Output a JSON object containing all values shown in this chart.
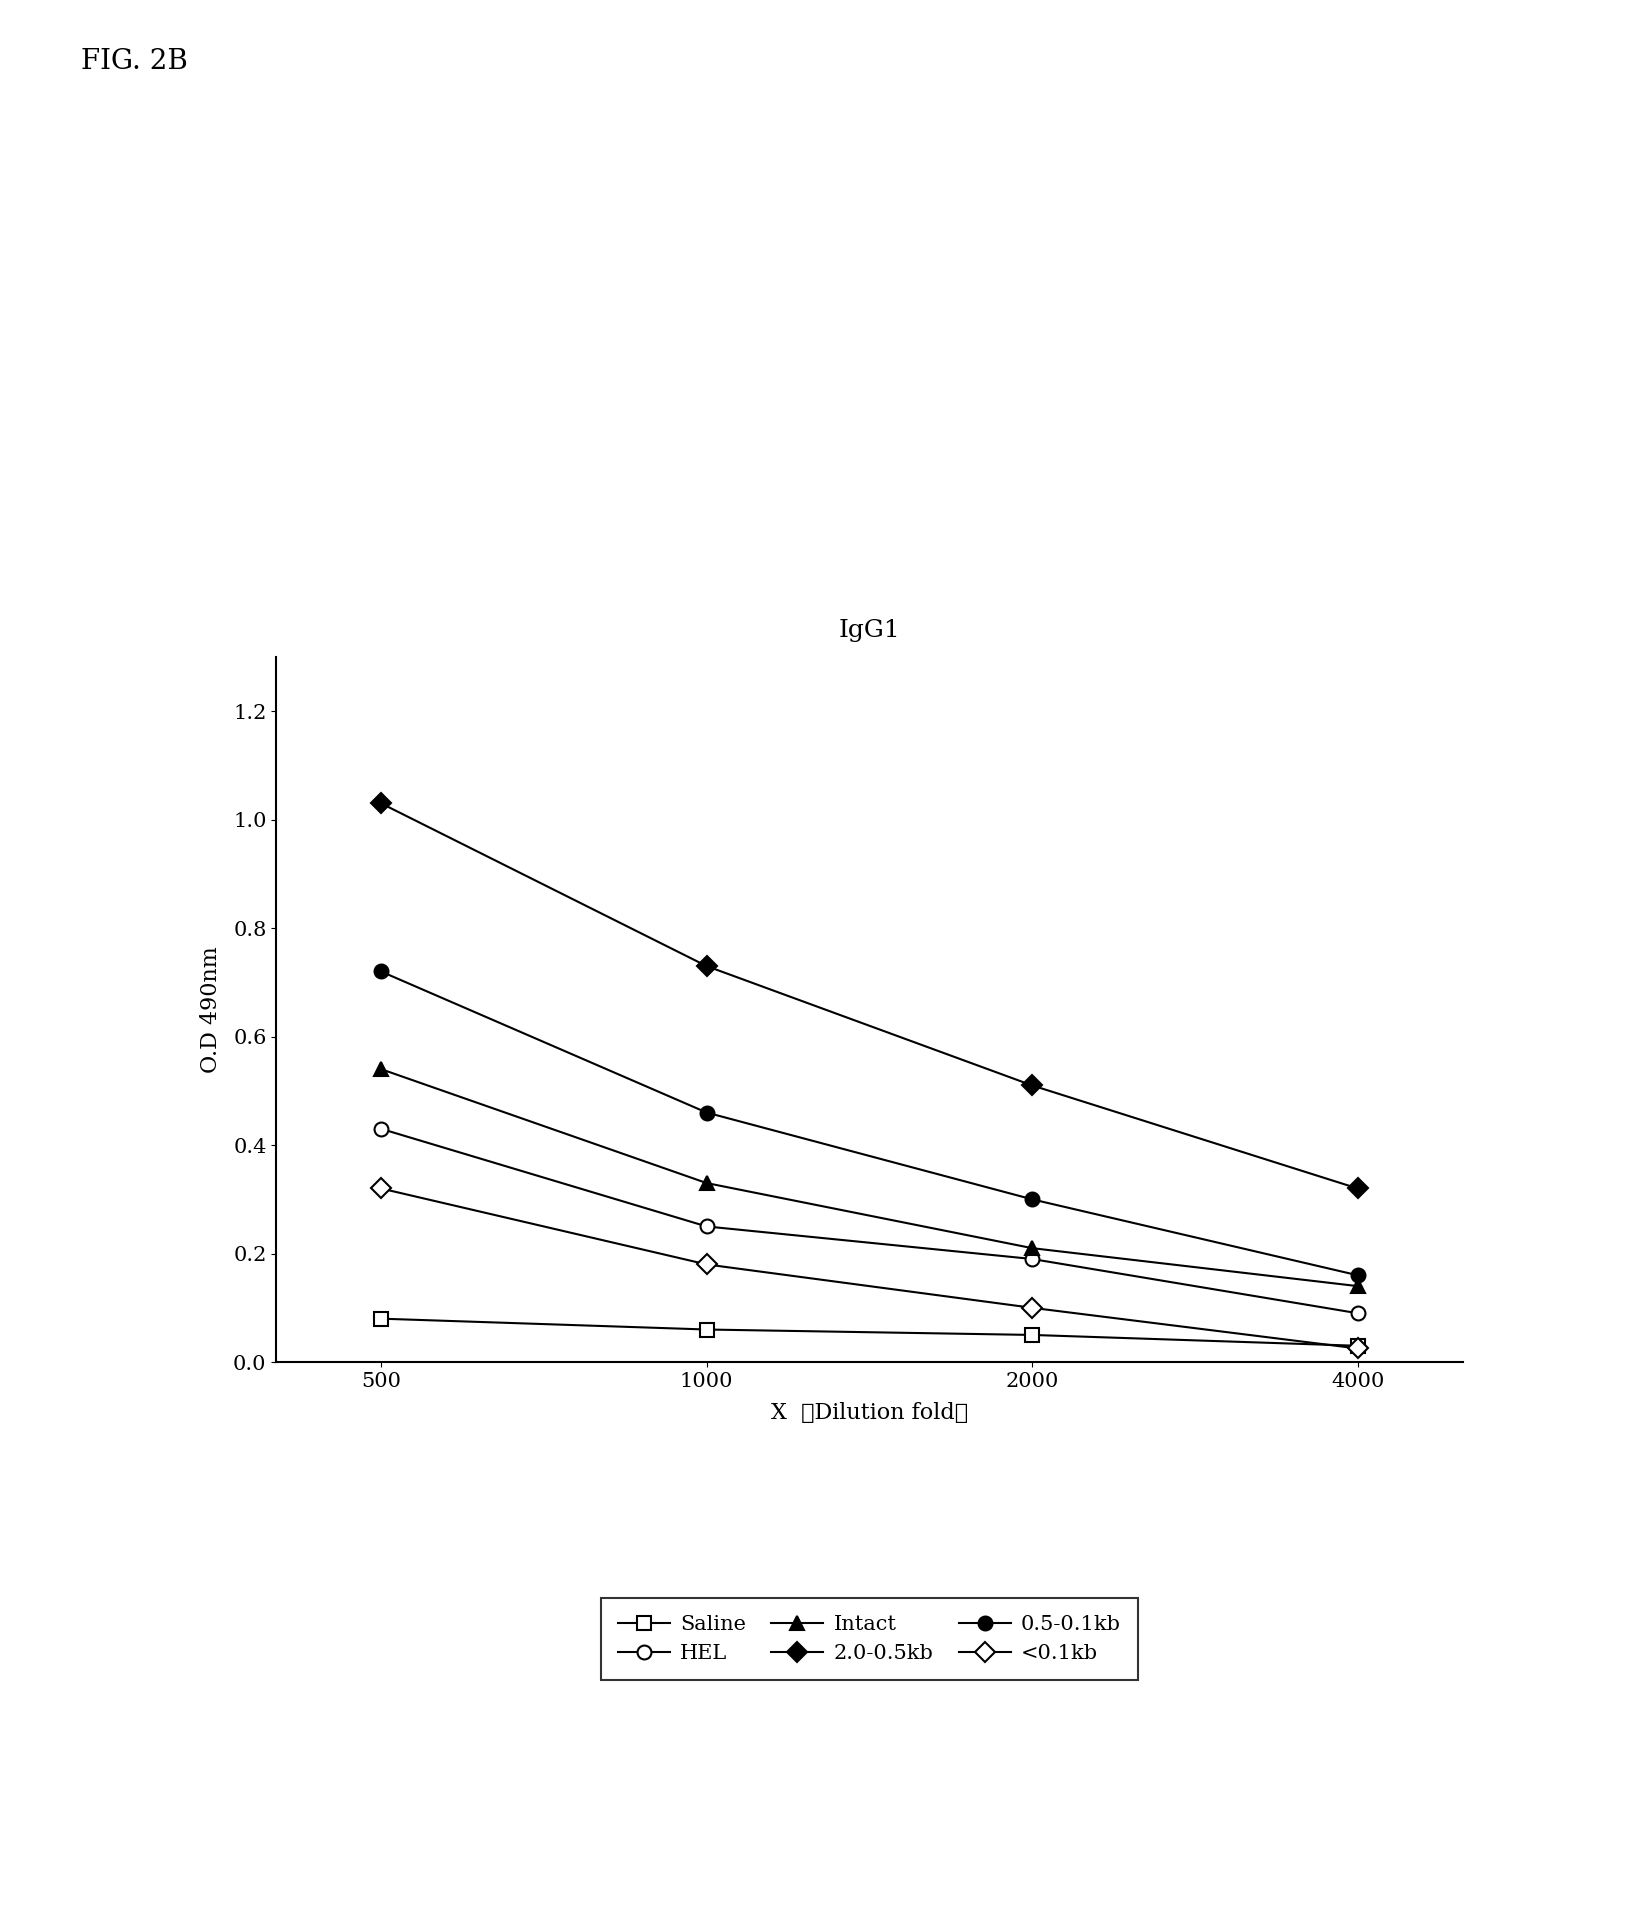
{
  "title": "IgG1",
  "xlabel": "X  ❘Dilution fold❘",
  "ylabel": "O.D 490nm",
  "x_values": [
    500,
    1000,
    2000,
    4000
  ],
  "series": [
    {
      "label": "Saline",
      "marker": "s",
      "fillstyle": "none",
      "color": "black",
      "linewidth": 1.5,
      "markersize": 10,
      "y": [
        0.08,
        0.06,
        0.05,
        0.03
      ]
    },
    {
      "label": "HEL",
      "marker": "o",
      "fillstyle": "none",
      "color": "black",
      "linewidth": 1.5,
      "markersize": 10,
      "y": [
        0.43,
        0.25,
        0.19,
        0.09
      ]
    },
    {
      "label": "Intact",
      "marker": "^",
      "fillstyle": "full",
      "color": "black",
      "linewidth": 1.5,
      "markersize": 10,
      "y": [
        0.54,
        0.33,
        0.21,
        0.14
      ]
    },
    {
      "label": "2.0-0.5kb",
      "marker": "D",
      "fillstyle": "full",
      "color": "black",
      "linewidth": 1.5,
      "markersize": 10,
      "y": [
        1.03,
        0.73,
        0.51,
        0.32
      ]
    },
    {
      "label": "0.5-0.1kb",
      "marker": "o",
      "fillstyle": "full",
      "color": "black",
      "linewidth": 1.5,
      "markersize": 10,
      "y": [
        0.72,
        0.46,
        0.3,
        0.16
      ]
    },
    {
      "label": "<0.1kb",
      "marker": "D",
      "fillstyle": "none",
      "color": "black",
      "linewidth": 1.5,
      "markersize": 10,
      "y": [
        0.32,
        0.18,
        0.1,
        0.025
      ]
    }
  ],
  "ylim": [
    0,
    1.3
  ],
  "yticks": [
    0,
    0.2,
    0.4,
    0.6,
    0.8,
    1.0,
    1.2
  ],
  "fig_title": "FIG. 2B",
  "background_color": "#ffffff",
  "legend_order": [
    0,
    1,
    2,
    3,
    4,
    5
  ],
  "xlabel_plain": "X  Dilution fold"
}
